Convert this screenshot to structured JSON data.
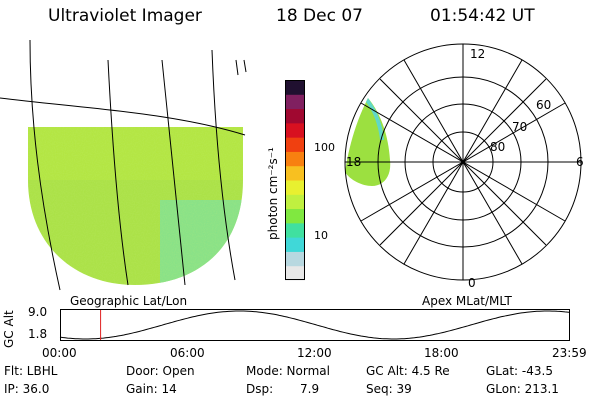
{
  "header": {
    "instrument": "Ultraviolet Imager",
    "date": "18 Dec 07",
    "time": "01:54:42 UT"
  },
  "colorbar": {
    "unit_label": "photon cm⁻²s⁻¹",
    "ticks": [
      {
        "label": "100",
        "value": 100
      },
      {
        "label": "10",
        "value": 10
      }
    ],
    "colors": [
      "#e8e8e8",
      "#b8d8e0",
      "#40d8d8",
      "#40e0a0",
      "#80e840",
      "#c0f040",
      "#e8f030",
      "#f8c020",
      "#f88010",
      "#f04010",
      "#d81020",
      "#a00830",
      "#802060",
      "#201030"
    ]
  },
  "geo_panel": {
    "label": "Geographic Lat/Lon"
  },
  "polar_panel": {
    "label": "Apex MLat/MLT",
    "mlt_labels": {
      "top": "12",
      "left": "18",
      "right": "6",
      "bottom": "0"
    },
    "mlat_labels": [
      "60",
      "70",
      "80"
    ]
  },
  "timeline": {
    "ylabel": "GC Alt",
    "ymax": "9.0",
    "ymin": "1.8",
    "ticks": [
      "00:00",
      "06:00",
      "12:00",
      "18:00",
      "23:59"
    ],
    "current_hour": 1.91
  },
  "info": {
    "flt": "Flt: LBHL",
    "ip": "IP: 36.0",
    "door": "Door: Open",
    "gain": "Gain: 14",
    "mode": "Mode: Normal",
    "dsp": "Dsp:",
    "dsp_value": "7.9",
    "gcalt": "GC Alt: 4.5 Re",
    "seq": "Seq: 39",
    "glat": "GLat: -43.5",
    "glon": "GLon: 213.1"
  }
}
